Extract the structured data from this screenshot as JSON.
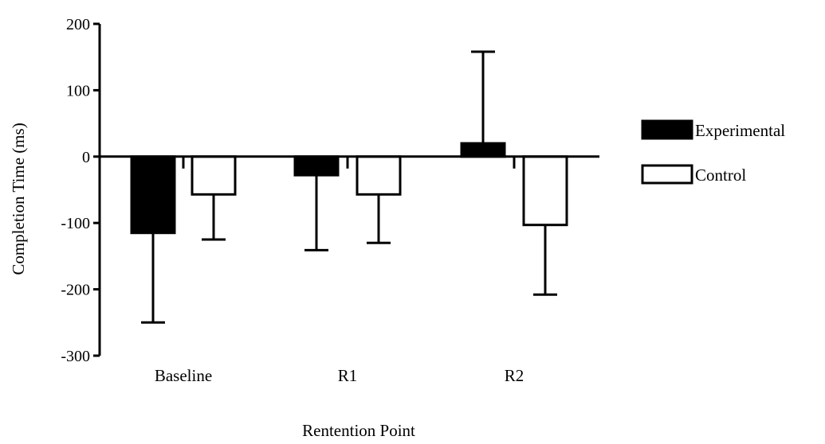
{
  "chart_data": {
    "type": "bar",
    "title": "",
    "xlabel": "Rentention Point",
    "ylabel": "Completion Time (ms)",
    "categories": [
      "Baseline",
      "R1",
      "R2"
    ],
    "series": [
      {
        "name": "Experimental",
        "values": [
          -115,
          -28,
          20
        ],
        "errors": [
          135,
          113,
          138
        ],
        "color": "#000000"
      },
      {
        "name": "Control",
        "values": [
          -57,
          -57,
          -103
        ],
        "errors": [
          68,
          73,
          105
        ],
        "color": "#ffffff"
      }
    ],
    "ylim": [
      -300,
      200
    ],
    "yticks": [
      "-300",
      "-200",
      "-100",
      "0",
      "100",
      "200"
    ],
    "grid": false,
    "legend_position": "right"
  }
}
